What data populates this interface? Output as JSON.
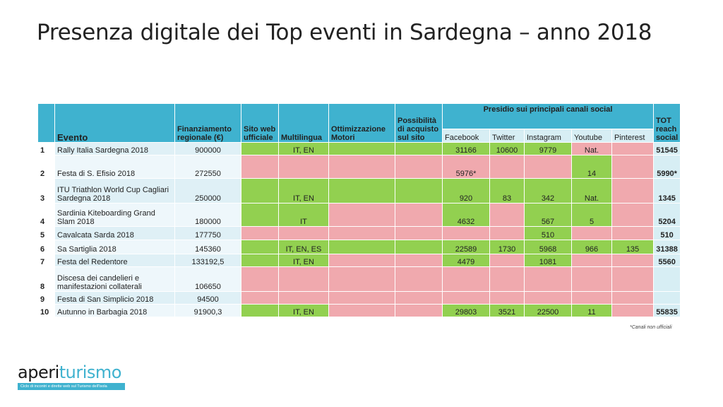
{
  "title": "Presenza digitale dei Top eventi in Sardegna – anno 2018",
  "headers": {
    "evento": "Evento",
    "finanziamento": "Finanziamento regionale (€)",
    "sito": "Sito web ufficiale",
    "multilingua": "Multilingua",
    "ottimizzazione": "Ottimizzazione Motori",
    "possibilita": "Possibilità di acquisto sul sito",
    "presidio": "Presidio sui principali canali social",
    "facebook": "Facebook",
    "twitter": "Twitter",
    "instagram": "Instagram",
    "youtube": "Youtube",
    "pinterest": "Pinterest",
    "tot": "TOT reach social"
  },
  "rows": [
    {
      "n": "1",
      "evento": "Rally Italia Sardegna 2018",
      "fin": "900000",
      "multi": "IT, EN",
      "fb": "31166",
      "tw": "10600",
      "ig": "9779",
      "yt": "Nat.",
      "pi": "",
      "tot": "51545"
    },
    {
      "n": "2",
      "evento": "Festa di S. Efisio 2018",
      "fin": "272550",
      "multi": "",
      "fb": "5976*",
      "tw": "",
      "ig": "",
      "yt": "14",
      "pi": "",
      "tot": "5990*"
    },
    {
      "n": "3",
      "evento": "ITU Triathlon World Cup Cagliari Sardegna 2018",
      "fin": "250000",
      "multi": "IT, EN",
      "fb": "920",
      "tw": "83",
      "ig": "342",
      "yt": "Nat.",
      "pi": "",
      "tot": "1345"
    },
    {
      "n": "4",
      "evento": "Sardinia Kiteboarding Grand Slam 2018",
      "fin": "180000",
      "multi": "IT",
      "fb": "4632",
      "tw": "",
      "ig": "567",
      "yt": "5",
      "pi": "",
      "tot": "5204"
    },
    {
      "n": "5",
      "evento": "Cavalcata Sarda 2018",
      "fin": "177750",
      "multi": "",
      "fb": "",
      "tw": "",
      "ig": "510",
      "yt": "",
      "pi": "",
      "tot": "510"
    },
    {
      "n": "6",
      "evento": "Sa Sartiglia 2018",
      "fin": "145360",
      "multi": "IT, EN, ES",
      "fb": "22589",
      "tw": "1730",
      "ig": "5968",
      "yt": "966",
      "pi": "135",
      "tot": "31388"
    },
    {
      "n": "7",
      "evento": "Festa del Redentore",
      "fin": "133192,5",
      "multi": "IT, EN",
      "fb": "4479",
      "tw": "",
      "ig": "1081",
      "yt": "",
      "pi": "",
      "tot": "5560"
    },
    {
      "n": "8",
      "evento": "Discesa dei  candelieri e manifestazioni collaterali",
      "fin": "106650",
      "multi": "",
      "fb": "",
      "tw": "",
      "ig": "",
      "yt": "",
      "pi": "",
      "tot": ""
    },
    {
      "n": "9",
      "evento": "Festa di San Simplicio 2018",
      "fin": "94500",
      "multi": "",
      "fb": "",
      "tw": "",
      "ig": "",
      "yt": "",
      "pi": "",
      "tot": ""
    },
    {
      "n": "10",
      "evento": "Autunno in Barbagia 2018",
      "fin": "91900,3",
      "multi": "IT, EN",
      "fb": "29803",
      "tw": "3521",
      "ig": "22500",
      "yt": "11",
      "pi": "",
      "tot": "55835"
    }
  ],
  "footnote": "*Canali non ufficiali",
  "logo": {
    "part1": "aperi",
    "part2": "turismo",
    "tagline": "Ciclo di incontri e dirette web sul Turismo dell'Isola"
  },
  "colors": {
    "header": "#3fb2cf",
    "green": "#92d050",
    "pink": "#f0a9ae",
    "rowLight": "#dff0f6",
    "rowLighter": "#eef7fb"
  }
}
